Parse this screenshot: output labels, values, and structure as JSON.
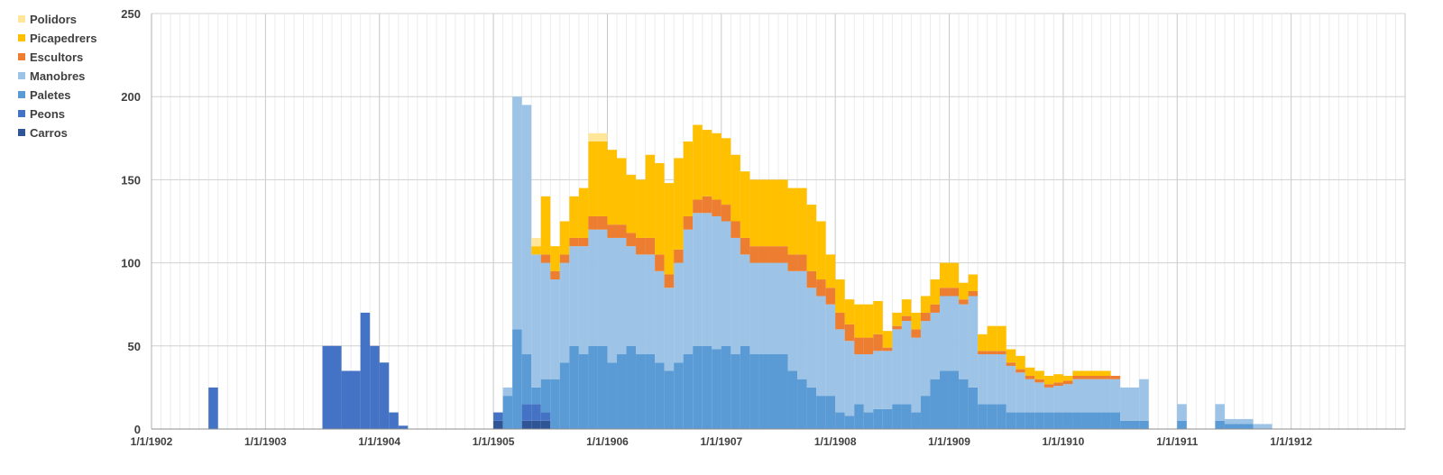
{
  "chart_data": {
    "type": "area",
    "stacking": "stacked",
    "title": "",
    "xlabel": "",
    "ylabel": "",
    "grid": true,
    "legend_position": "top-left",
    "ylim": [
      0,
      250
    ],
    "xlim": [
      "1/1/1902",
      "1/1/1913"
    ],
    "y_ticks": [
      "0",
      "50",
      "100",
      "150",
      "200",
      "250"
    ],
    "x_ticks": [
      "1/1/1902",
      "1/1/1903",
      "1/1/1904",
      "1/1/1905",
      "1/1/1906",
      "1/1/1907",
      "1/1/1908",
      "1/1/1909",
      "1/1/1910",
      "1/1/1911",
      "1/1/1912"
    ],
    "legend": [
      {
        "name": "Polidors",
        "color": "#FFE699"
      },
      {
        "name": "Picapedrers",
        "color": "#FFC000"
      },
      {
        "name": "Escultors",
        "color": "#ED7D31"
      },
      {
        "name": "Manobres",
        "color": "#9DC3E6"
      },
      {
        "name": "Paletes",
        "color": "#5B9BD5"
      },
      {
        "name": "Peons",
        "color": "#4472C4"
      },
      {
        "name": "Carros",
        "color": "#2F5597"
      }
    ],
    "x": [
      "1/7/1902",
      "1/8/1902",
      "1/7/1903",
      "1/9/1903",
      "1/11/1903",
      "1/12/1903",
      "1/1/1904",
      "1/2/1904",
      "1/3/1904",
      "1/4/1904",
      "1/1/1905",
      "1/2/1905",
      "1/3/1905",
      "1/4/1905",
      "1/5/1905",
      "1/6/1905",
      "1/7/1905",
      "1/8/1905",
      "1/9/1905",
      "1/10/1905",
      "1/11/1905",
      "1/12/1905",
      "1/1/1906",
      "1/2/1906",
      "1/3/1906",
      "1/4/1906",
      "1/5/1906",
      "1/6/1906",
      "1/7/1906",
      "1/8/1906",
      "1/9/1906",
      "1/10/1906",
      "1/11/1906",
      "1/12/1906",
      "1/1/1907",
      "1/2/1907",
      "1/3/1907",
      "1/4/1907",
      "1/5/1907",
      "1/6/1907",
      "1/7/1907",
      "1/8/1907",
      "1/9/1907",
      "1/10/1907",
      "1/11/1907",
      "1/12/1907",
      "1/1/1908",
      "1/2/1908",
      "1/3/1908",
      "1/4/1908",
      "1/5/1908",
      "1/6/1908",
      "1/7/1908",
      "1/8/1908",
      "1/9/1908",
      "1/10/1908",
      "1/11/1908",
      "1/12/1908",
      "1/1/1909",
      "1/2/1909",
      "1/3/1909",
      "1/4/1909",
      "1/5/1909",
      "1/6/1909",
      "1/7/1909",
      "1/8/1909",
      "1/9/1909",
      "1/10/1909",
      "1/11/1909",
      "1/12/1909",
      "1/1/1910",
      "1/2/1910",
      "1/3/1910",
      "1/4/1910",
      "1/5/1910",
      "1/6/1910",
      "1/7/1910",
      "1/9/1910",
      "1/1/1911",
      "1/5/1911",
      "1/6/1911",
      "1/9/1911",
      "1/11/1911"
    ],
    "series": [
      {
        "name": "Carros",
        "values": [
          0,
          0,
          0,
          0,
          0,
          0,
          0,
          0,
          0,
          0,
          5,
          0,
          0,
          5,
          5,
          5,
          0,
          0,
          0,
          0,
          0,
          0,
          0,
          0,
          0,
          0,
          0,
          0,
          0,
          0,
          0,
          0,
          0,
          0,
          0,
          0,
          0,
          0,
          0,
          0,
          0,
          0,
          0,
          0,
          0,
          0,
          0,
          0,
          0,
          0,
          0,
          0,
          0,
          0,
          0,
          0,
          0,
          0,
          0,
          0,
          0,
          0,
          0,
          0,
          0,
          0,
          0,
          0,
          0,
          0,
          0,
          0,
          0,
          0,
          0,
          0,
          0,
          0,
          0,
          0,
          0,
          0,
          0
        ]
      },
      {
        "name": "Peons",
        "values": [
          25,
          0,
          50,
          35,
          70,
          50,
          40,
          10,
          2,
          0,
          5,
          0,
          0,
          10,
          10,
          5,
          0,
          0,
          0,
          0,
          0,
          0,
          0,
          0,
          0,
          0,
          0,
          0,
          0,
          0,
          0,
          0,
          0,
          0,
          0,
          0,
          0,
          0,
          0,
          0,
          0,
          0,
          0,
          0,
          0,
          0,
          0,
          0,
          0,
          0,
          0,
          0,
          0,
          0,
          0,
          0,
          0,
          0,
          0,
          0,
          0,
          0,
          0,
          0,
          0,
          0,
          0,
          0,
          0,
          0,
          0,
          0,
          0,
          0,
          0,
          0,
          0,
          0,
          0,
          0,
          0,
          0,
          0
        ]
      },
      {
        "name": "Paletes",
        "values": [
          0,
          0,
          0,
          0,
          0,
          0,
          0,
          0,
          0,
          0,
          0,
          20,
          60,
          30,
          10,
          20,
          30,
          40,
          50,
          45,
          50,
          50,
          40,
          45,
          50,
          45,
          45,
          40,
          35,
          40,
          45,
          50,
          50,
          48,
          50,
          45,
          50,
          45,
          45,
          45,
          45,
          35,
          30,
          25,
          20,
          20,
          10,
          8,
          15,
          10,
          12,
          12,
          15,
          15,
          10,
          20,
          30,
          35,
          35,
          30,
          25,
          15,
          15,
          15,
          10,
          10,
          10,
          10,
          10,
          10,
          10,
          10,
          10,
          10,
          10,
          10,
          5,
          5,
          5,
          5,
          3,
          0,
          0
        ]
      },
      {
        "name": "Manobres",
        "values": [
          0,
          0,
          0,
          0,
          0,
          0,
          0,
          0,
          0,
          0,
          0,
          5,
          140,
          150,
          80,
          70,
          60,
          60,
          60,
          65,
          70,
          70,
          75,
          70,
          60,
          60,
          60,
          55,
          50,
          60,
          75,
          80,
          80,
          80,
          75,
          70,
          55,
          55,
          55,
          55,
          55,
          60,
          65,
          60,
          60,
          55,
          50,
          45,
          30,
          35,
          35,
          35,
          45,
          50,
          45,
          45,
          40,
          45,
          45,
          45,
          55,
          30,
          30,
          30,
          28,
          24,
          20,
          18,
          15,
          16,
          17,
          20,
          20,
          20,
          20,
          20,
          20,
          25,
          10,
          10,
          3,
          3,
          0
        ]
      },
      {
        "name": "Escultors",
        "values": [
          0,
          0,
          0,
          0,
          0,
          0,
          0,
          0,
          0,
          0,
          0,
          0,
          0,
          0,
          0,
          5,
          5,
          5,
          5,
          5,
          8,
          8,
          8,
          8,
          8,
          10,
          10,
          10,
          8,
          8,
          8,
          8,
          10,
          10,
          10,
          10,
          10,
          10,
          10,
          10,
          10,
          10,
          10,
          10,
          10,
          10,
          10,
          10,
          10,
          10,
          10,
          2,
          2,
          3,
          5,
          5,
          5,
          5,
          5,
          3,
          3,
          2,
          2,
          2,
          2,
          2,
          2,
          2,
          2,
          2,
          2,
          2,
          2,
          2,
          2,
          2,
          0,
          0,
          0,
          0,
          0,
          0,
          0
        ]
      },
      {
        "name": "Picapedrers",
        "values": [
          0,
          0,
          0,
          0,
          0,
          0,
          0,
          0,
          0,
          0,
          0,
          0,
          0,
          0,
          5,
          35,
          15,
          20,
          25,
          30,
          45,
          45,
          45,
          40,
          35,
          35,
          50,
          55,
          55,
          55,
          45,
          45,
          40,
          40,
          40,
          40,
          40,
          40,
          40,
          40,
          40,
          40,
          40,
          40,
          35,
          20,
          20,
          15,
          20,
          20,
          20,
          10,
          8,
          10,
          10,
          10,
          15,
          15,
          15,
          10,
          10,
          10,
          15,
          15,
          8,
          8,
          5,
          5,
          5,
          5,
          3,
          3,
          3,
          3,
          3,
          0,
          0,
          0,
          0,
          0,
          0,
          0,
          0
        ]
      },
      {
        "name": "Polidors",
        "values": [
          0,
          0,
          0,
          0,
          0,
          0,
          0,
          0,
          0,
          0,
          0,
          0,
          0,
          0,
          5,
          0,
          0,
          0,
          0,
          0,
          5,
          5,
          0,
          0,
          0,
          0,
          0,
          0,
          0,
          0,
          0,
          0,
          0,
          0,
          0,
          0,
          0,
          0,
          0,
          0,
          0,
          0,
          0,
          0,
          0,
          0,
          0,
          0,
          0,
          0,
          0,
          0,
          0,
          0,
          0,
          0,
          0,
          0,
          0,
          0,
          0,
          0,
          0,
          0,
          0,
          0,
          0,
          0,
          0,
          0,
          0,
          0,
          0,
          0,
          0,
          0,
          0,
          0,
          0,
          0,
          0,
          0,
          0
        ]
      }
    ]
  }
}
